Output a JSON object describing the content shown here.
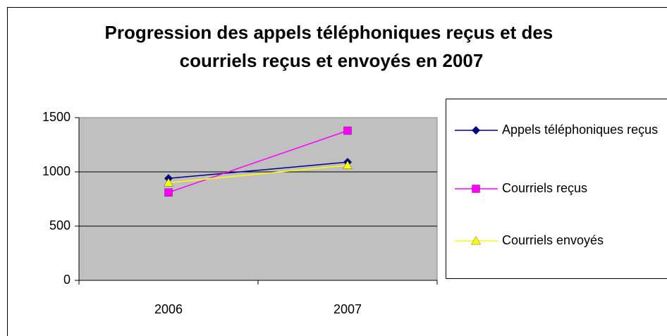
{
  "chart_data": {
    "type": "line",
    "title": "Progression des appels téléphoniques reçus et des courriels reçus et envoyés en 2007",
    "categories": [
      "2006",
      "2007"
    ],
    "series": [
      {
        "name": "Appels téléphoniques reçus",
        "color": "#000080",
        "marker": "diamond",
        "values": [
          940,
          1090
        ]
      },
      {
        "name": "Courriels reçus",
        "color": "#ff00ff",
        "marker": "square",
        "values": [
          810,
          1380
        ]
      },
      {
        "name": "Courriels envoyés",
        "color": "#ffff00",
        "marker": "triangle",
        "values": [
          900,
          1060
        ]
      }
    ],
    "ylim": [
      0,
      1500
    ],
    "yticks": [
      0,
      500,
      1000,
      1500
    ],
    "grid": true,
    "legend": "right"
  }
}
